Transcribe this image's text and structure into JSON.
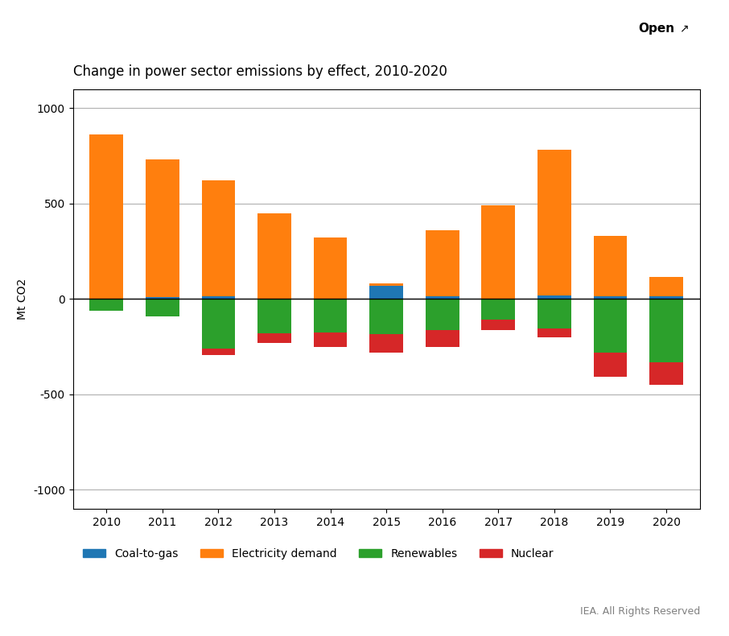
{
  "chart_data": {
    "type": "bar",
    "stacked": true,
    "title": "Change in power sector emissions by effect, 2010-2020",
    "ylabel": "Mt CO2",
    "annotations": [
      "Open",
      "↗",
      "IEA. All Rights Reserved"
    ],
    "categories": [
      "2010",
      "2011",
      "2012",
      "2013",
      "2014",
      "2015",
      "2016",
      "2017",
      "2018",
      "2019",
      "2020"
    ],
    "series": [
      {
        "name": "Coal-to-gas",
        "values": [
          0,
          10,
          15,
          0,
          0,
          70,
          15,
          0,
          20,
          15,
          15
        ]
      },
      {
        "name": "Electricity demand",
        "values": [
          860,
          720,
          605,
          450,
          320,
          10,
          345,
          490,
          760,
          315,
          100
        ]
      },
      {
        "name": "Renewables",
        "values": [
          -60,
          -90,
          -260,
          -180,
          -175,
          -185,
          -165,
          -110,
          -155,
          -280,
          -330
        ]
      },
      {
        "name": "Nuclear",
        "values": [
          0,
          0,
          -35,
          -50,
          -75,
          -95,
          -85,
          -55,
          -45,
          -130,
          -120
        ]
      }
    ],
    "ylim": [
      -1100,
      1100
    ],
    "yticks": [
      -1000,
      -500,
      0,
      500,
      1000
    ],
    "grid": true,
    "legend": "upper left"
  }
}
